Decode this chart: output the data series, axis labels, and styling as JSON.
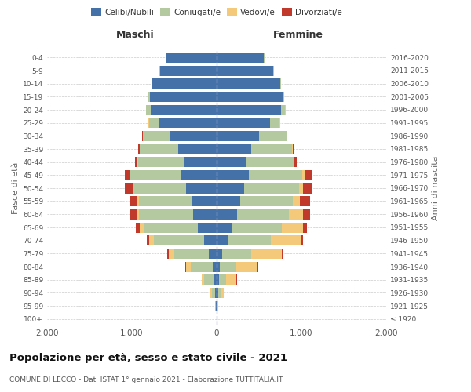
{
  "age_groups": [
    "100+",
    "95-99",
    "90-94",
    "85-89",
    "80-84",
    "75-79",
    "70-74",
    "65-69",
    "60-64",
    "55-59",
    "50-54",
    "45-49",
    "40-44",
    "35-39",
    "30-34",
    "25-29",
    "20-24",
    "15-19",
    "10-14",
    "5-9",
    "0-4"
  ],
  "birth_years": [
    "≤ 1920",
    "1921-1925",
    "1926-1930",
    "1931-1935",
    "1936-1940",
    "1941-1945",
    "1946-1950",
    "1951-1955",
    "1956-1960",
    "1961-1965",
    "1966-1970",
    "1971-1975",
    "1976-1980",
    "1981-1985",
    "1986-1990",
    "1991-1995",
    "1996-2000",
    "2001-2005",
    "2006-2010",
    "2011-2015",
    "2016-2020"
  ],
  "male": {
    "celibi": [
      2,
      5,
      15,
      30,
      50,
      90,
      150,
      220,
      280,
      300,
      360,
      420,
      390,
      450,
      560,
      680,
      780,
      790,
      760,
      670,
      590
    ],
    "coniugati": [
      1,
      10,
      45,
      120,
      260,
      410,
      590,
      640,
      640,
      620,
      620,
      600,
      540,
      460,
      310,
      120,
      55,
      18,
      5,
      2,
      1
    ],
    "vedovi": [
      0,
      2,
      10,
      25,
      55,
      65,
      55,
      45,
      28,
      14,
      9,
      4,
      3,
      2,
      1,
      1,
      0,
      0,
      0,
      0,
      0
    ],
    "divorziati": [
      0,
      0,
      2,
      5,
      8,
      18,
      28,
      45,
      75,
      95,
      95,
      55,
      28,
      18,
      9,
      4,
      2,
      1,
      0,
      0,
      0
    ]
  },
  "female": {
    "nubili": [
      2,
      5,
      15,
      25,
      38,
      65,
      125,
      185,
      245,
      275,
      325,
      380,
      350,
      410,
      500,
      630,
      760,
      780,
      750,
      670,
      560
    ],
    "coniugate": [
      1,
      8,
      28,
      85,
      190,
      340,
      510,
      580,
      610,
      620,
      650,
      630,
      560,
      480,
      320,
      115,
      50,
      14,
      5,
      2,
      1
    ],
    "vedove": [
      0,
      5,
      38,
      125,
      255,
      365,
      355,
      255,
      165,
      88,
      48,
      28,
      9,
      5,
      3,
      2,
      1,
      0,
      0,
      0,
      0
    ],
    "divorziate": [
      0,
      0,
      2,
      5,
      9,
      18,
      28,
      48,
      78,
      115,
      95,
      78,
      28,
      14,
      7,
      4,
      2,
      1,
      0,
      0,
      0
    ]
  },
  "colors": {
    "celibi": "#4472a8",
    "coniugati": "#b5c9a1",
    "vedovi": "#f5c97a",
    "divorziati": "#c0392b"
  },
  "xlim": 2000,
  "title": "Popolazione per età, sesso e stato civile - 2021",
  "subtitle": "COMUNE DI LECCO - Dati ISTAT 1° gennaio 2021 - Elaborazione TUTTITALIA.IT",
  "ylabel_left": "Fasce di età",
  "ylabel_right": "Anni di nascita",
  "xlabel_left": "Maschi",
  "xlabel_right": "Femmine"
}
